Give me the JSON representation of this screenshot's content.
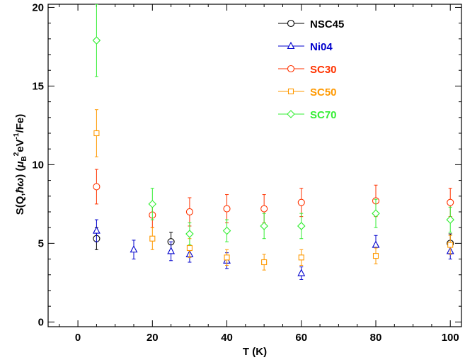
{
  "chart_data": {
    "type": "scatter",
    "xlabel": "T (K)",
    "ylabel_parts": {
      "prefix": "S(Q,",
      "hbar": "ħ",
      "omega": "ω",
      "mid": ") (",
      "mu": "μ",
      "sub_b": "B",
      "sup_2": "2",
      "ev": "eV",
      "sup_neg1": "-1",
      "suffix": "/Fe)"
    },
    "xlim": [
      -8,
      103
    ],
    "ylim": [
      -0.3,
      20.2
    ],
    "xticks": [
      0,
      20,
      40,
      60,
      80,
      100
    ],
    "yticks": [
      0,
      5,
      10,
      15,
      20
    ],
    "grid": false,
    "legend_position": "top-right",
    "series": [
      {
        "name": "NSC45",
        "color": "#000000",
        "marker": "circle",
        "points": [
          {
            "x": 5,
            "y": 5.3,
            "err": 0.7
          },
          {
            "x": 25,
            "y": 5.1,
            "err": 0.6
          },
          {
            "x": 100,
            "y": 5.0,
            "err": 0.6
          }
        ]
      },
      {
        "name": "Ni04",
        "color": "#0000cc",
        "marker": "triangle",
        "points": [
          {
            "x": 5,
            "y": 5.8,
            "err": 0.7
          },
          {
            "x": 15,
            "y": 4.6,
            "err": 0.6
          },
          {
            "x": 25,
            "y": 4.5,
            "err": 0.6
          },
          {
            "x": 30,
            "y": 4.3,
            "err": 0.5
          },
          {
            "x": 40,
            "y": 3.9,
            "err": 0.5
          },
          {
            "x": 60,
            "y": 3.1,
            "err": 0.4
          },
          {
            "x": 80,
            "y": 4.9,
            "err": 0.6
          },
          {
            "x": 100,
            "y": 4.5,
            "err": 0.5
          }
        ]
      },
      {
        "name": "SC30",
        "color": "#ff3300",
        "marker": "circle",
        "points": [
          {
            "x": 5,
            "y": 8.6,
            "err": 1.1
          },
          {
            "x": 20,
            "y": 6.8,
            "err": 0.8
          },
          {
            "x": 30,
            "y": 7.0,
            "err": 0.9
          },
          {
            "x": 40,
            "y": 7.2,
            "err": 0.9
          },
          {
            "x": 50,
            "y": 7.2,
            "err": 0.9
          },
          {
            "x": 60,
            "y": 7.6,
            "err": 0.9
          },
          {
            "x": 80,
            "y": 7.7,
            "err": 1.0
          },
          {
            "x": 100,
            "y": 7.6,
            "err": 0.9
          }
        ]
      },
      {
        "name": "SC50",
        "color": "#ff9900",
        "marker": "square",
        "points": [
          {
            "x": 5,
            "y": 12.0,
            "err": 1.5
          },
          {
            "x": 20,
            "y": 5.3,
            "err": 0.7
          },
          {
            "x": 30,
            "y": 4.7,
            "err": 0.6
          },
          {
            "x": 40,
            "y": 4.1,
            "err": 0.5
          },
          {
            "x": 50,
            "y": 3.8,
            "err": 0.5
          },
          {
            "x": 60,
            "y": 4.1,
            "err": 0.5
          },
          {
            "x": 80,
            "y": 4.2,
            "err": 0.5
          },
          {
            "x": 100,
            "y": 4.9,
            "err": 0.6
          }
        ]
      },
      {
        "name": "SC70",
        "color": "#33ee33",
        "marker": "diamond",
        "points": [
          {
            "x": 5,
            "y": 17.9,
            "err": 2.3
          },
          {
            "x": 20,
            "y": 7.5,
            "err": 1.0
          },
          {
            "x": 30,
            "y": 5.6,
            "err": 0.7
          },
          {
            "x": 40,
            "y": 5.8,
            "err": 0.7
          },
          {
            "x": 50,
            "y": 6.1,
            "err": 0.8
          },
          {
            "x": 60,
            "y": 6.1,
            "err": 0.8
          },
          {
            "x": 80,
            "y": 6.9,
            "err": 0.9
          },
          {
            "x": 100,
            "y": 6.5,
            "err": 0.8
          }
        ]
      }
    ]
  }
}
